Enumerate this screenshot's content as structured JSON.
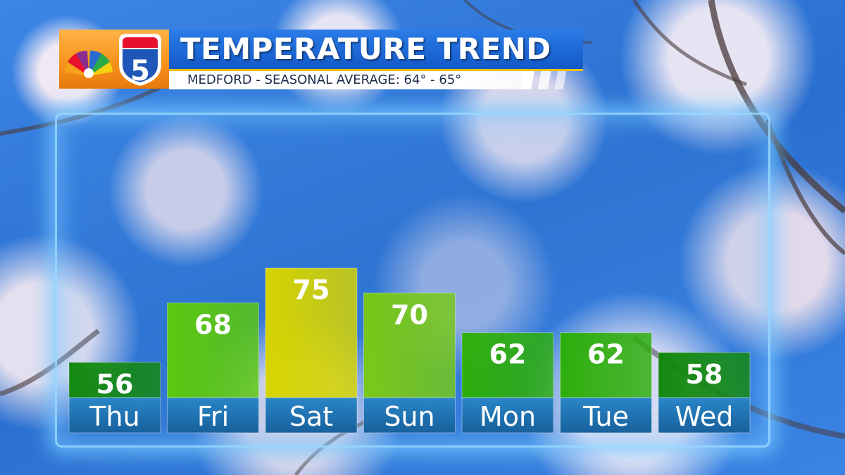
{
  "header": {
    "title": "TEMPERATURE TREND",
    "subtitle": "MEDFORD - SEASONAL AVERAGE: 64° - 65°",
    "logo": {
      "channel_number": "5",
      "icon": "peacock-logo-icon"
    }
  },
  "colors": {
    "title_bar": "#1a63d6",
    "bar_dark_green": "#13890f",
    "bar_green": "#46bf0c",
    "bar_lime": "#78c818",
    "bar_yellow": "#d6d400",
    "label_blue": "#1f6fae"
  },
  "chart_data": {
    "type": "bar",
    "title": "TEMPERATURE TREND",
    "subtitle": "MEDFORD - SEASONAL AVERAGE: 64° - 65°",
    "categories": [
      "Thu",
      "Fri",
      "Sat",
      "Sun",
      "Mon",
      "Tue",
      "Wed"
    ],
    "values": [
      56,
      68,
      75,
      70,
      62,
      62,
      58
    ],
    "bar_colors": [
      "#13890f",
      "#5cc80e",
      "#d6d400",
      "#78c818",
      "#2eae0c",
      "#2eae0c",
      "#13890f"
    ],
    "grid": false,
    "legend": "none"
  }
}
